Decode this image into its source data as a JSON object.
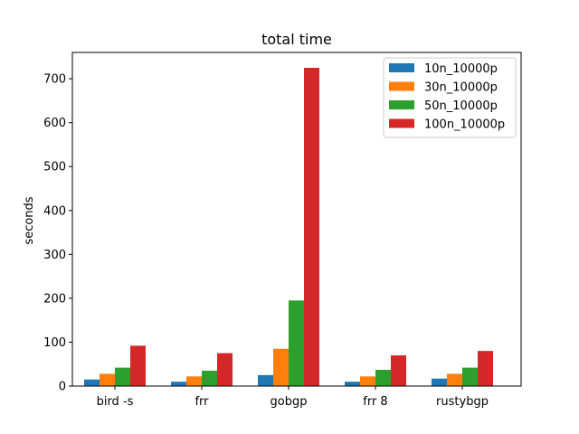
{
  "chart_data": {
    "type": "bar",
    "title": "total time",
    "xlabel": "",
    "ylabel": "seconds",
    "categories": [
      "bird -s",
      "frr",
      "gobgp",
      "frr 8",
      "rustybgp"
    ],
    "series": [
      {
        "name": "10n_10000p",
        "values": [
          15,
          10,
          25,
          10,
          17
        ],
        "color": "#1f77b4"
      },
      {
        "name": "30n_10000p",
        "values": [
          28,
          22,
          85,
          22,
          28
        ],
        "color": "#ff7f0e"
      },
      {
        "name": "50n_10000p",
        "values": [
          42,
          35,
          195,
          37,
          42
        ],
        "color": "#2ca02c"
      },
      {
        "name": "100n_10000p",
        "values": [
          92,
          75,
          725,
          70,
          80
        ],
        "color": "#d62728"
      }
    ],
    "ylim": [
      0,
      760
    ],
    "yticks": [
      0,
      100,
      200,
      300,
      400,
      500,
      600,
      700
    ],
    "grid": false,
    "legend_position": "top-right"
  }
}
